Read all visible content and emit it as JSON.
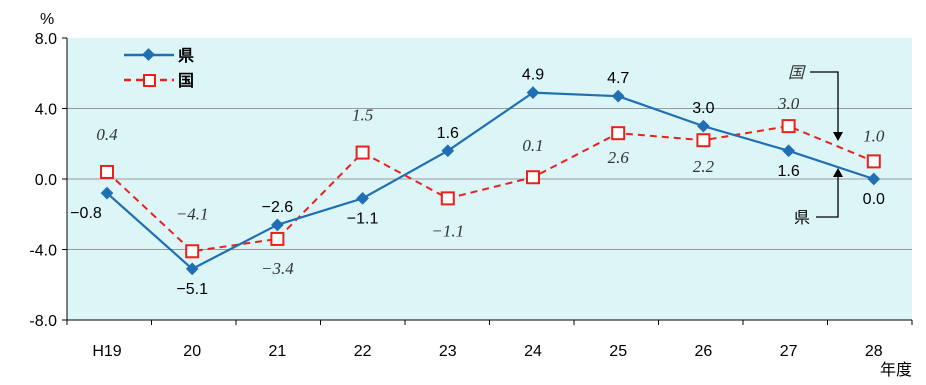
{
  "chart_data": {
    "type": "line",
    "ylabel": "%",
    "xlabel": "年度",
    "categories": [
      "H19",
      "20",
      "21",
      "22",
      "23",
      "24",
      "25",
      "26",
      "27",
      "28"
    ],
    "y_ticks": [
      "8.0",
      "4.0",
      "0.0",
      "-4.0",
      "-8.0"
    ],
    "ylim": [
      -8,
      8
    ],
    "grid": true,
    "legend": "top-left",
    "series": [
      {
        "name": "県",
        "values": [
          -0.8,
          -5.1,
          -2.6,
          -1.1,
          1.6,
          4.9,
          4.7,
          3.0,
          1.6,
          0.0
        ],
        "labels": [
          "−0.8",
          "−5.1",
          "−2.6",
          "−1.1",
          "1.6",
          "4.9",
          "4.7",
          "3.0",
          "1.6",
          "0.0"
        ],
        "color": "#1f6fb2",
        "marker": "diamond",
        "line": "solid"
      },
      {
        "name": "国",
        "values": [
          0.4,
          -4.1,
          -3.4,
          1.5,
          -1.1,
          0.1,
          2.6,
          2.2,
          3.0,
          1.0
        ],
        "labels": [
          "0.4",
          "−4.1",
          "−3.4",
          "1.5",
          "−1.1",
          "0.1",
          "2.6",
          "2.2",
          "3.0",
          "1.0"
        ],
        "color": "#e8211c",
        "marker": "square-open",
        "line": "dashed"
      }
    ],
    "callouts": {
      "kuni": "国",
      "ken": "県"
    }
  },
  "colors": {
    "plot_bg": "#dcf6f8",
    "grid": "#9a9a9a"
  }
}
